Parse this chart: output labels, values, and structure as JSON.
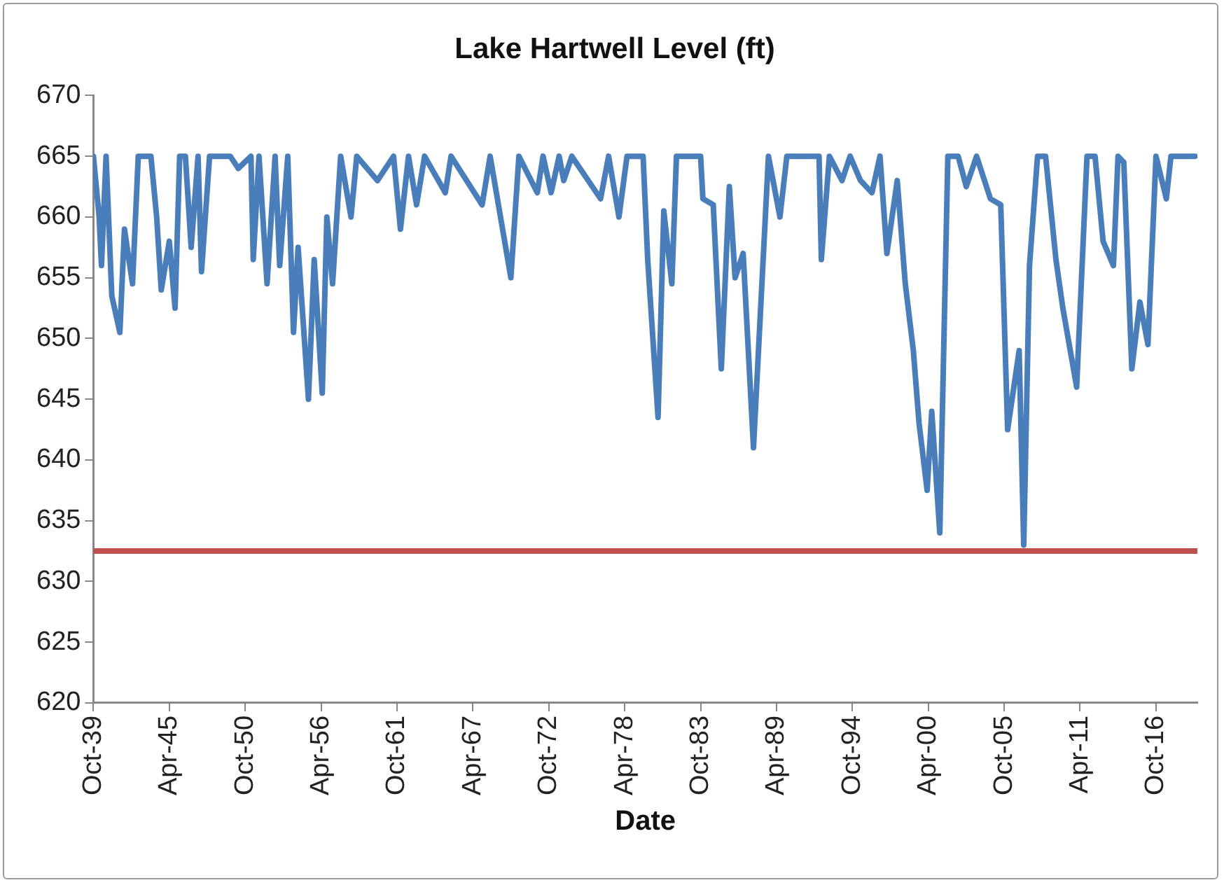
{
  "chart_data": {
    "type": "line",
    "title": "Lake Hartwell Level (ft)",
    "xlabel": "Date",
    "x": [
      "1939-10",
      "1940-03",
      "1940-05",
      "1940-09",
      "1941-02",
      "1941-09",
      "1942-01",
      "1942-08",
      "1943-01",
      "1943-12",
      "1944-05",
      "1944-09",
      "1945-04",
      "1945-09",
      "1946-01",
      "1946-06",
      "1946-11",
      "1947-05",
      "1947-08",
      "1948-03",
      "1949-09",
      "1950-04",
      "1951-03",
      "1951-05",
      "1951-10",
      "1952-05",
      "1952-12",
      "1953-04",
      "1953-11",
      "1954-04",
      "1954-08",
      "1955-05",
      "1955-10",
      "1956-05",
      "1956-09",
      "1957-02",
      "1957-09",
      "1958-06",
      "1958-11",
      "1960-05",
      "1961-07",
      "1962-01",
      "1962-08",
      "1963-03",
      "1963-10",
      "1965-04",
      "1965-09",
      "1967-12",
      "1968-07",
      "1970-01",
      "1970-08",
      "1971-12",
      "1972-05",
      "1972-12",
      "1973-07",
      "1973-11",
      "1974-06",
      "1976-07",
      "1977-02",
      "1977-11",
      "1978-06",
      "1979-08",
      "1979-12",
      "1980-09",
      "1981-02",
      "1981-09",
      "1982-01",
      "1983-10",
      "1983-12",
      "1984-09",
      "1985-04",
      "1985-11",
      "1986-04",
      "1986-11",
      "1987-08",
      "1988-09",
      "1989-07",
      "1990-01",
      "1992-05",
      "1992-07",
      "1993-02",
      "1994-01",
      "1994-08",
      "1995-05",
      "1996-03",
      "1996-10",
      "1997-04",
      "1998-01",
      "1998-08",
      "1999-03",
      "1999-08",
      "2000-03",
      "2000-07",
      "2001-02",
      "2001-09",
      "2002-06",
      "2003-01",
      "2003-10",
      "2004-10",
      "2005-07",
      "2006-01",
      "2006-11",
      "2007-03",
      "2007-08",
      "2008-03",
      "2008-10",
      "2009-07",
      "2010-01",
      "2011-01",
      "2011-10",
      "2012-05",
      "2012-12",
      "2013-09",
      "2014-01",
      "2014-06",
      "2015-01",
      "2015-08",
      "2016-03",
      "2016-10",
      "2017-07",
      "2017-11",
      "2019-08"
    ],
    "series": [
      {
        "color": "#4a7ebb",
        "values": [
          665,
          660,
          656,
          665,
          653.5,
          650.5,
          659,
          654.5,
          665,
          665,
          660,
          654,
          658,
          652.5,
          665,
          665,
          657.5,
          665,
          655.5,
          665,
          665,
          664,
          665,
          656.5,
          665,
          654.5,
          665,
          656,
          665,
          650.5,
          657.5,
          645,
          656.5,
          645.5,
          660,
          654.5,
          665,
          660,
          665,
          663,
          665,
          659,
          665,
          661,
          665,
          662,
          665,
          661,
          665,
          655,
          665,
          662,
          665,
          662,
          665,
          663,
          665,
          661.5,
          665,
          660,
          665,
          665,
          656.5,
          643.5,
          660.5,
          654.5,
          665,
          665,
          661.5,
          661,
          647.5,
          662.5,
          655,
          657,
          641,
          665,
          660,
          665,
          665,
          656.5,
          665,
          663,
          665,
          663,
          662,
          665,
          657,
          663,
          654.5,
          649,
          643,
          637.5,
          644,
          634,
          665,
          665,
          662.5,
          665,
          661.5,
          661,
          642.5,
          649,
          633,
          656,
          665,
          665,
          656.5,
          652.5,
          646,
          665,
          665,
          658,
          656,
          665,
          664.5,
          647.5,
          653,
          649.5,
          665,
          661.5,
          665,
          665
        ]
      }
    ],
    "xlim": [
      "1939-10",
      "2019-10"
    ],
    "xticks": [
      {
        "value": "1939-10",
        "label": "Oct-39"
      },
      {
        "value": "1945-04",
        "label": "Apr-45"
      },
      {
        "value": "1950-10",
        "label": "Oct-50"
      },
      {
        "value": "1956-04",
        "label": "Apr-56"
      },
      {
        "value": "1961-10",
        "label": "Oct-61"
      },
      {
        "value": "1967-04",
        "label": "Apr-67"
      },
      {
        "value": "1972-10",
        "label": "Oct-72"
      },
      {
        "value": "1978-04",
        "label": "Apr-78"
      },
      {
        "value": "1983-10",
        "label": "Oct-83"
      },
      {
        "value": "1989-04",
        "label": "Apr-89"
      },
      {
        "value": "1994-10",
        "label": "Oct-94"
      },
      {
        "value": "2000-04",
        "label": "Apr-00"
      },
      {
        "value": "2005-10",
        "label": "Oct-05"
      },
      {
        "value": "2011-04",
        "label": "Apr-11"
      },
      {
        "value": "2016-10",
        "label": "Oct-16"
      }
    ],
    "ylim": [
      620,
      670
    ],
    "yticks": [
      620,
      625,
      630,
      635,
      640,
      645,
      650,
      655,
      660,
      665,
      670
    ],
    "ref_lines": [
      {
        "axis": "y",
        "value": 632.5,
        "color": "#c0504d"
      }
    ],
    "grid": false,
    "legend": false,
    "marker": "none",
    "line_style": "solid"
  }
}
